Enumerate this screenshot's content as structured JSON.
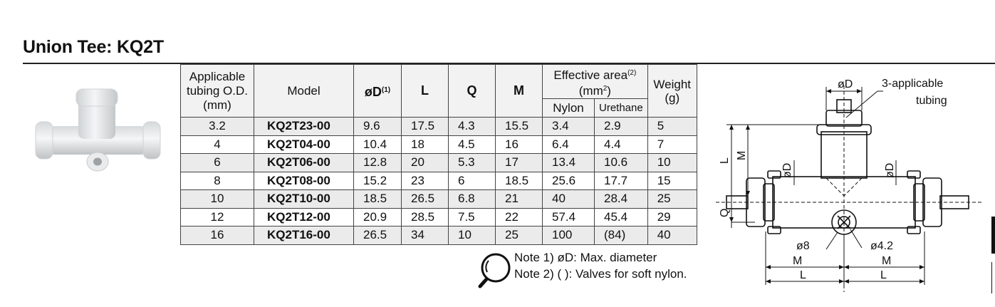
{
  "title": "Union Tee: KQ2T",
  "table": {
    "headers": {
      "tubing": [
        "Applicable",
        "tubing O.D.",
        "(mm)"
      ],
      "model": "Model",
      "od": "øD",
      "od_sup": "(1)",
      "L": "L",
      "Q": "Q",
      "M": "M",
      "effective_area": "Effective area",
      "effective_area_sup": "(2)",
      "effective_area_unit": "(mm",
      "effective_area_unit_sup": "2",
      "effective_area_unit_close": ")",
      "nylon": "Nylon",
      "urethane": "Urethane",
      "weight": "Weight",
      "weight_unit": "(g)"
    },
    "rows": [
      {
        "tubing": "3.2",
        "model": "KQ2T23-00",
        "od": "9.6",
        "L": "17.5",
        "Q": "4.3",
        "M": "15.5",
        "nylon": "3.4",
        "urethane": "2.9",
        "weight": "5"
      },
      {
        "tubing": "4",
        "model": "KQ2T04-00",
        "od": "10.4",
        "L": "18",
        "Q": "4.5",
        "M": "16",
        "nylon": "6.4",
        "urethane": "4.4",
        "weight": "7"
      },
      {
        "tubing": "6",
        "model": "KQ2T06-00",
        "od": "12.8",
        "L": "20",
        "Q": "5.3",
        "M": "17",
        "nylon": "13.4",
        "urethane": "10.6",
        "weight": "10"
      },
      {
        "tubing": "8",
        "model": "KQ2T08-00",
        "od": "15.2",
        "L": "23",
        "Q": "6",
        "M": "18.5",
        "nylon": "25.6",
        "urethane": "17.7",
        "weight": "15"
      },
      {
        "tubing": "10",
        "model": "KQ2T10-00",
        "od": "18.5",
        "L": "26.5",
        "Q": "6.8",
        "M": "21",
        "nylon": "40",
        "urethane": "28.4",
        "weight": "25"
      },
      {
        "tubing": "12",
        "model": "KQ2T12-00",
        "od": "20.9",
        "L": "28.5",
        "Q": "7.5",
        "M": "22",
        "nylon": "57.4",
        "urethane": "45.4",
        "weight": "29"
      },
      {
        "tubing": "16",
        "model": "KQ2T16-00",
        "od": "26.5",
        "L": "34",
        "Q": "10",
        "M": "25",
        "nylon": "100",
        "urethane": "(84)",
        "weight": "40"
      }
    ]
  },
  "notes": {
    "note1": "Note 1) øD: Max. diameter",
    "note2": "Note 2) ( ): Valves for soft nylon."
  },
  "drawing": {
    "od_top": "øD",
    "tubing_label_1": "3-applicable",
    "tubing_label_2": "tubing",
    "L_vert": "L",
    "M_vert": "M",
    "Q_vert": "Q",
    "od_left": "øD",
    "od_right": "øD",
    "phi8": "ø8",
    "phi42": "ø4.2",
    "M_left": "M",
    "M_right": "M",
    "L_left": "L",
    "L_right": "L"
  }
}
